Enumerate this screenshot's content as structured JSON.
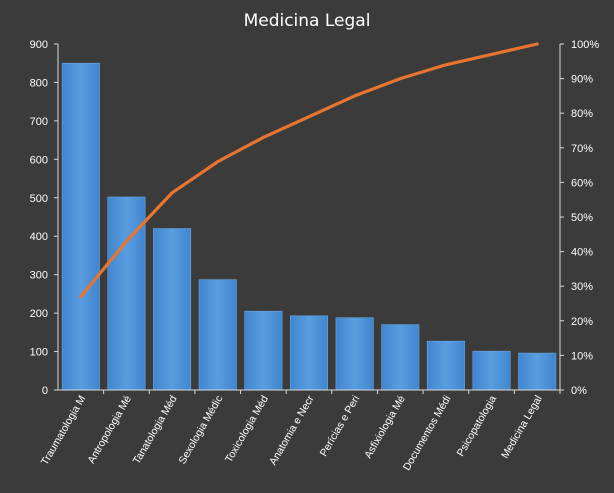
{
  "chart_data": {
    "type": "bar",
    "title": "Medicina  Legal",
    "categories": [
      "Traumatologia M",
      "Antropologia Mé",
      "Tanatologia Méd",
      "Sexologia Médic",
      "Toxicologia Méd",
      "Anatomia e Necr",
      "Perícias e Peri",
      "Asfixiologia Mé",
      "Documentos Médi",
      "Psicopatologia",
      "Medicina Legal"
    ],
    "values": [
      850,
      502,
      420,
      287,
      205,
      193,
      188,
      170,
      127,
      101,
      96
    ],
    "line_values": [
      27,
      43,
      57,
      66,
      73,
      79,
      85,
      90,
      94,
      97,
      100
    ],
    "ylim": [
      0,
      900
    ],
    "yticks": [
      "0",
      "100",
      "200",
      "300",
      "400",
      "500",
      "600",
      "700",
      "800",
      "900"
    ],
    "y2lim": [
      0,
      100
    ],
    "y2ticks": [
      "0%",
      "10%",
      "20%",
      "30%",
      "40%",
      "50%",
      "60%",
      "70%",
      "80%",
      "90%",
      "100%"
    ],
    "grid": false,
    "legend": "none",
    "colors": {
      "background": "#3b3b3b",
      "bar": "#4f93d6",
      "bar_edge": "#6ba7e0",
      "line": "#e8752f",
      "axis": "#d9d9d9",
      "text": "#ffffff"
    }
  }
}
